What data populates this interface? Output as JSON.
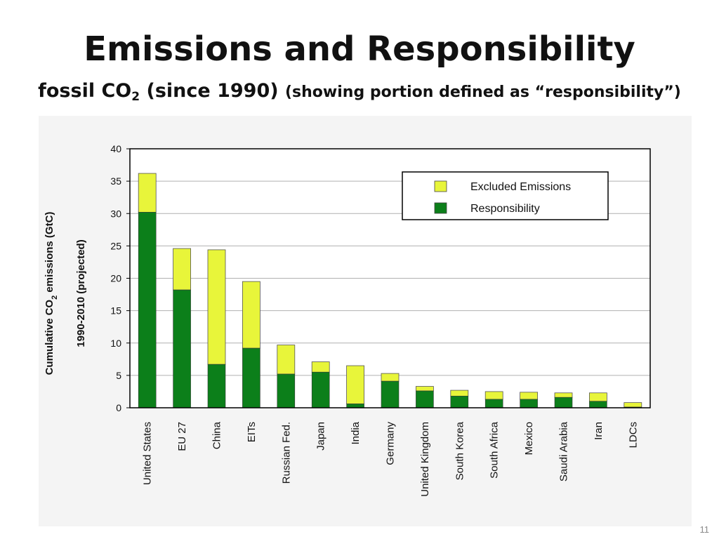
{
  "title": "Emissions and Responsibility",
  "subtitle": {
    "prefix": "fossil CO",
    "subscript": "2",
    "main": " (since 1990) ",
    "note": "(showing portion defined as “responsibility”)"
  },
  "slide_number": "11",
  "colors": {
    "excluded": "#e8f53a",
    "responsibility": "#0c7f1a",
    "frame": "#000000",
    "grid": "#b0b0b0"
  },
  "chart_data": {
    "type": "bar",
    "stacked": true,
    "categories": [
      "United States",
      "EU 27",
      "China",
      "EITs",
      "Russian Fed.",
      "Japan",
      "India",
      "Germany",
      "United Kingdom",
      "South Korea",
      "South Africa",
      "Mexico",
      "Saudi Arabia",
      "Iran",
      "LDCs"
    ],
    "series": [
      {
        "name": "Responsibility",
        "values": [
          30.2,
          18.2,
          6.7,
          9.2,
          5.2,
          5.5,
          0.6,
          4.1,
          2.6,
          1.8,
          1.3,
          1.3,
          1.6,
          1.0,
          0.1
        ]
      },
      {
        "name": "Excluded Emissions",
        "values": [
          6.0,
          6.4,
          17.7,
          10.3,
          4.5,
          1.6,
          5.9,
          1.2,
          0.7,
          0.9,
          1.2,
          1.1,
          0.7,
          1.3,
          0.7
        ]
      }
    ],
    "legend": [
      {
        "name": "Excluded Emissions",
        "series": "Excluded Emissions"
      },
      {
        "name": "Responsibility",
        "series": "Responsibility"
      }
    ],
    "legend_position": "top-right",
    "ylabel_line1": "Cumulative  CO",
    "ylabel_sub": "2",
    "ylabel_line1_end": " emissions (GtC)",
    "ylabel_line2": "1990-2010 (projected)",
    "ylim": [
      0,
      40
    ],
    "yticks": [
      0,
      5,
      10,
      15,
      20,
      25,
      30,
      35,
      40
    ],
    "grid": true
  }
}
